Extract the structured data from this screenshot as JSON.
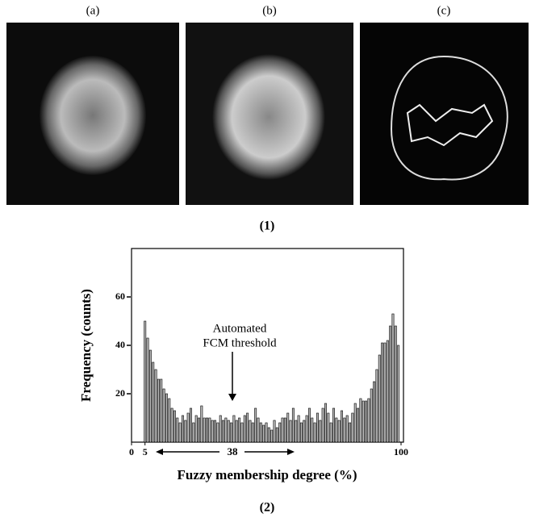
{
  "panels": [
    "(a)",
    "(b)",
    "(c)"
  ],
  "caption_top": "(1)",
  "caption_bottom": "(2)",
  "chart_data": {
    "type": "bar",
    "xlabel": "Fuzzy membership degree (%)",
    "ylabel": "Frequency (counts)",
    "annotation": [
      "Automated",
      "FCM threshold"
    ],
    "range_label": "38",
    "x": [
      5,
      6,
      7,
      8,
      9,
      10,
      11,
      12,
      13,
      14,
      15,
      16,
      17,
      18,
      19,
      20,
      21,
      22,
      23,
      24,
      25,
      26,
      27,
      28,
      29,
      30,
      31,
      32,
      33,
      34,
      35,
      36,
      37,
      38,
      39,
      40,
      41,
      42,
      43,
      44,
      45,
      46,
      47,
      48,
      49,
      50,
      51,
      52,
      53,
      54,
      55,
      56,
      57,
      58,
      59,
      60,
      61,
      62,
      63,
      64,
      65,
      66,
      67,
      68,
      69,
      70,
      71,
      72,
      73,
      74,
      75,
      76,
      77,
      78,
      79,
      80,
      81,
      82,
      83,
      84,
      85,
      86,
      87,
      88,
      89,
      90,
      91,
      92,
      93,
      94,
      95,
      96,
      97,
      98,
      99
    ],
    "values": [
      50,
      43,
      38,
      33,
      30,
      26,
      26,
      22,
      20,
      18,
      14,
      13,
      10,
      8,
      11,
      9,
      12,
      14,
      8,
      11,
      10,
      15,
      10,
      10,
      10,
      9,
      9,
      8,
      11,
      9,
      10,
      9,
      8,
      11,
      9,
      10,
      8,
      11,
      12,
      9,
      8,
      14,
      10,
      8,
      7,
      8,
      6,
      5,
      9,
      6,
      8,
      10,
      10,
      12,
      9,
      14,
      9,
      11,
      8,
      9,
      11,
      14,
      10,
      8,
      12,
      9,
      14,
      16,
      12,
      8,
      14,
      10,
      9,
      13,
      10,
      11,
      8,
      12,
      16,
      14,
      18,
      17,
      17,
      18,
      22,
      25,
      30,
      36,
      41,
      41,
      42,
      48,
      53,
      48,
      40
    ],
    "color": "#b8b8b8",
    "xlim": [
      0,
      100
    ],
    "xticks": [
      0,
      5,
      100
    ],
    "ylim": [
      0,
      80
    ],
    "yticks": [
      20,
      40,
      60
    ]
  }
}
